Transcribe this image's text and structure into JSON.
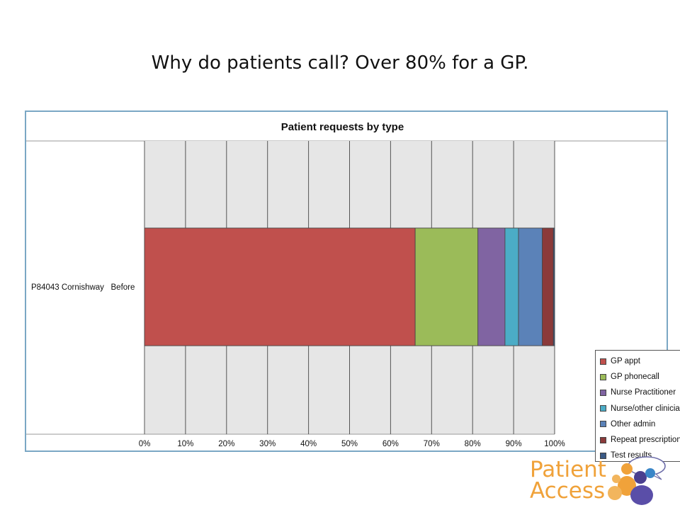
{
  "slide": {
    "title": "Why do patients call?  Over 80% for a GP."
  },
  "chart_data": {
    "type": "bar",
    "orientation": "horizontal",
    "stacked": "percent",
    "title": "Patient requests by type",
    "categories": [
      "P84043 Cornishway   Before"
    ],
    "series": [
      {
        "name": "GP appt",
        "color": "#c0504d",
        "values": [
          66
        ]
      },
      {
        "name": "GP phonecall",
        "color": "#9bbb59",
        "values": [
          15.3
        ]
      },
      {
        "name": "Nurse Practitioner",
        "color": "#8064a2",
        "values": [
          6.6
        ]
      },
      {
        "name": "Nurse/other clinician",
        "color": "#4bacc6",
        "values": [
          3.3
        ]
      },
      {
        "name": "Other admin",
        "color": "#5b82b8",
        "values": [
          5.8
        ]
      },
      {
        "name": "Repeat prescription",
        "color": "#8b3a3a",
        "values": [
          2.7
        ]
      },
      {
        "name": "Test results",
        "color": "#3a5a85",
        "values": [
          0.3
        ]
      }
    ],
    "xticks": [
      "0%",
      "10%",
      "20%",
      "30%",
      "40%",
      "50%",
      "60%",
      "70%",
      "80%",
      "90%",
      "100%"
    ],
    "xlim": [
      0,
      100
    ],
    "grid": true,
    "legend": "right"
  },
  "logo": {
    "line1": "Patient",
    "line2": "Access",
    "text_color": "#f0a23a",
    "icon": "people-speech-bubbles-icon"
  }
}
